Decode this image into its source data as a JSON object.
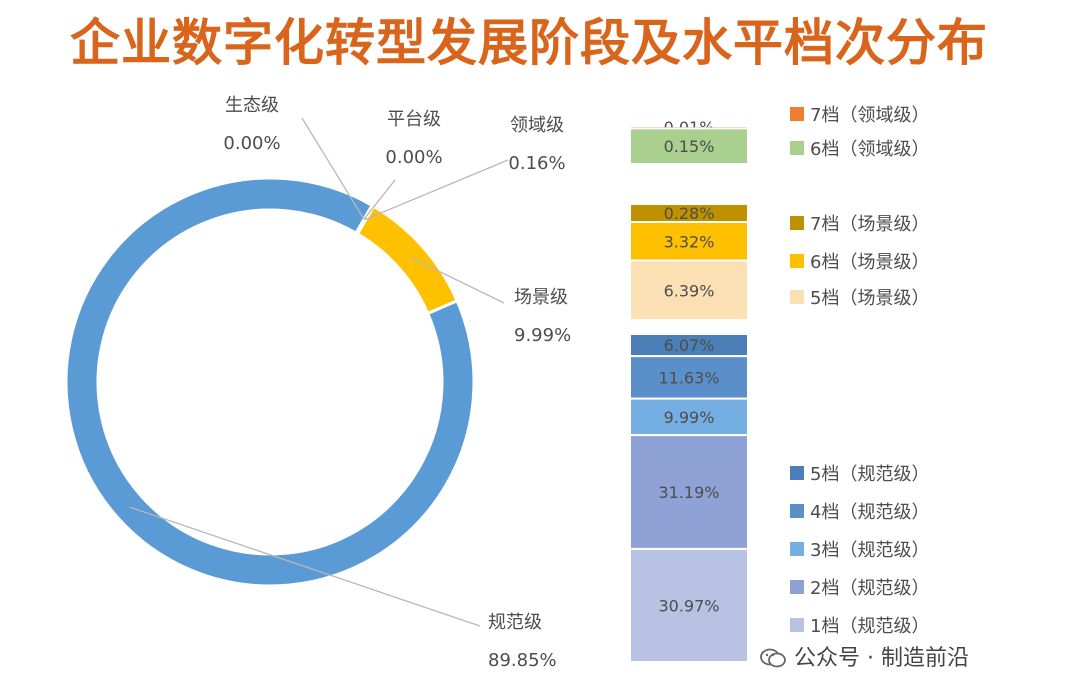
{
  "title": "企业数字化转型发展阶段及水平档次分布",
  "watermark": "公众号 · 制造前沿",
  "chart_data": [
    {
      "type": "pie",
      "variant": "donut",
      "slices": [
        {
          "name": "生态级",
          "value": 0.0,
          "label": "0.00%",
          "color": "#9aa0a8"
        },
        {
          "name": "平台级",
          "value": 0.0,
          "label": "0.00%",
          "color": "#5a9ad5"
        },
        {
          "name": "领域级",
          "value": 0.16,
          "label": "0.16%",
          "color": "#7fb77f"
        },
        {
          "name": "场景级",
          "value": 9.99,
          "label": "9.99%",
          "color": "#ffc000"
        },
        {
          "name": "规范级",
          "value": 89.85,
          "label": "89.85%",
          "color": "#5b9bd5"
        }
      ]
    },
    {
      "type": "bar",
      "variant": "stacked-100",
      "groups": [
        {
          "name": "领域级",
          "segments": [
            {
              "name": "7档（领域级）",
              "value": 0.01,
              "label": "0.01%",
              "color": "#ed7d31"
            },
            {
              "name": "6档（领域级）",
              "value": 0.15,
              "label": "0.15%",
              "color": "#a9d08e"
            }
          ]
        },
        {
          "name": "场景级",
          "segments": [
            {
              "name": "7档（场景级）",
              "value": 0.28,
              "label": "0.28%",
              "color": "#bf9000"
            },
            {
              "name": "6档（场景级）",
              "value": 3.32,
              "label": "3.32%",
              "color": "#ffc000"
            },
            {
              "name": "5档（场景级）",
              "value": 6.39,
              "label": "6.39%",
              "color": "#fbe0b4"
            }
          ]
        },
        {
          "name": "规范级",
          "segments": [
            {
              "name": "5档（规范级）",
              "value": 6.07,
              "label": "6.07%",
              "color": "#4a7fb8"
            },
            {
              "name": "4档（规范级）",
              "value": 11.63,
              "label": "11.63%",
              "color": "#5b8fc9"
            },
            {
              "name": "3档（规范级）",
              "value": 9.99,
              "label": "9.99%",
              "color": "#74aee3"
            },
            {
              "name": "2档（规范级）",
              "value": 31.19,
              "label": "31.19%",
              "color": "#8fa2d6"
            },
            {
              "name": "1档（规范级）",
              "value": 30.97,
              "label": "30.97%",
              "color": "#b8c2e3"
            }
          ]
        }
      ]
    }
  ]
}
